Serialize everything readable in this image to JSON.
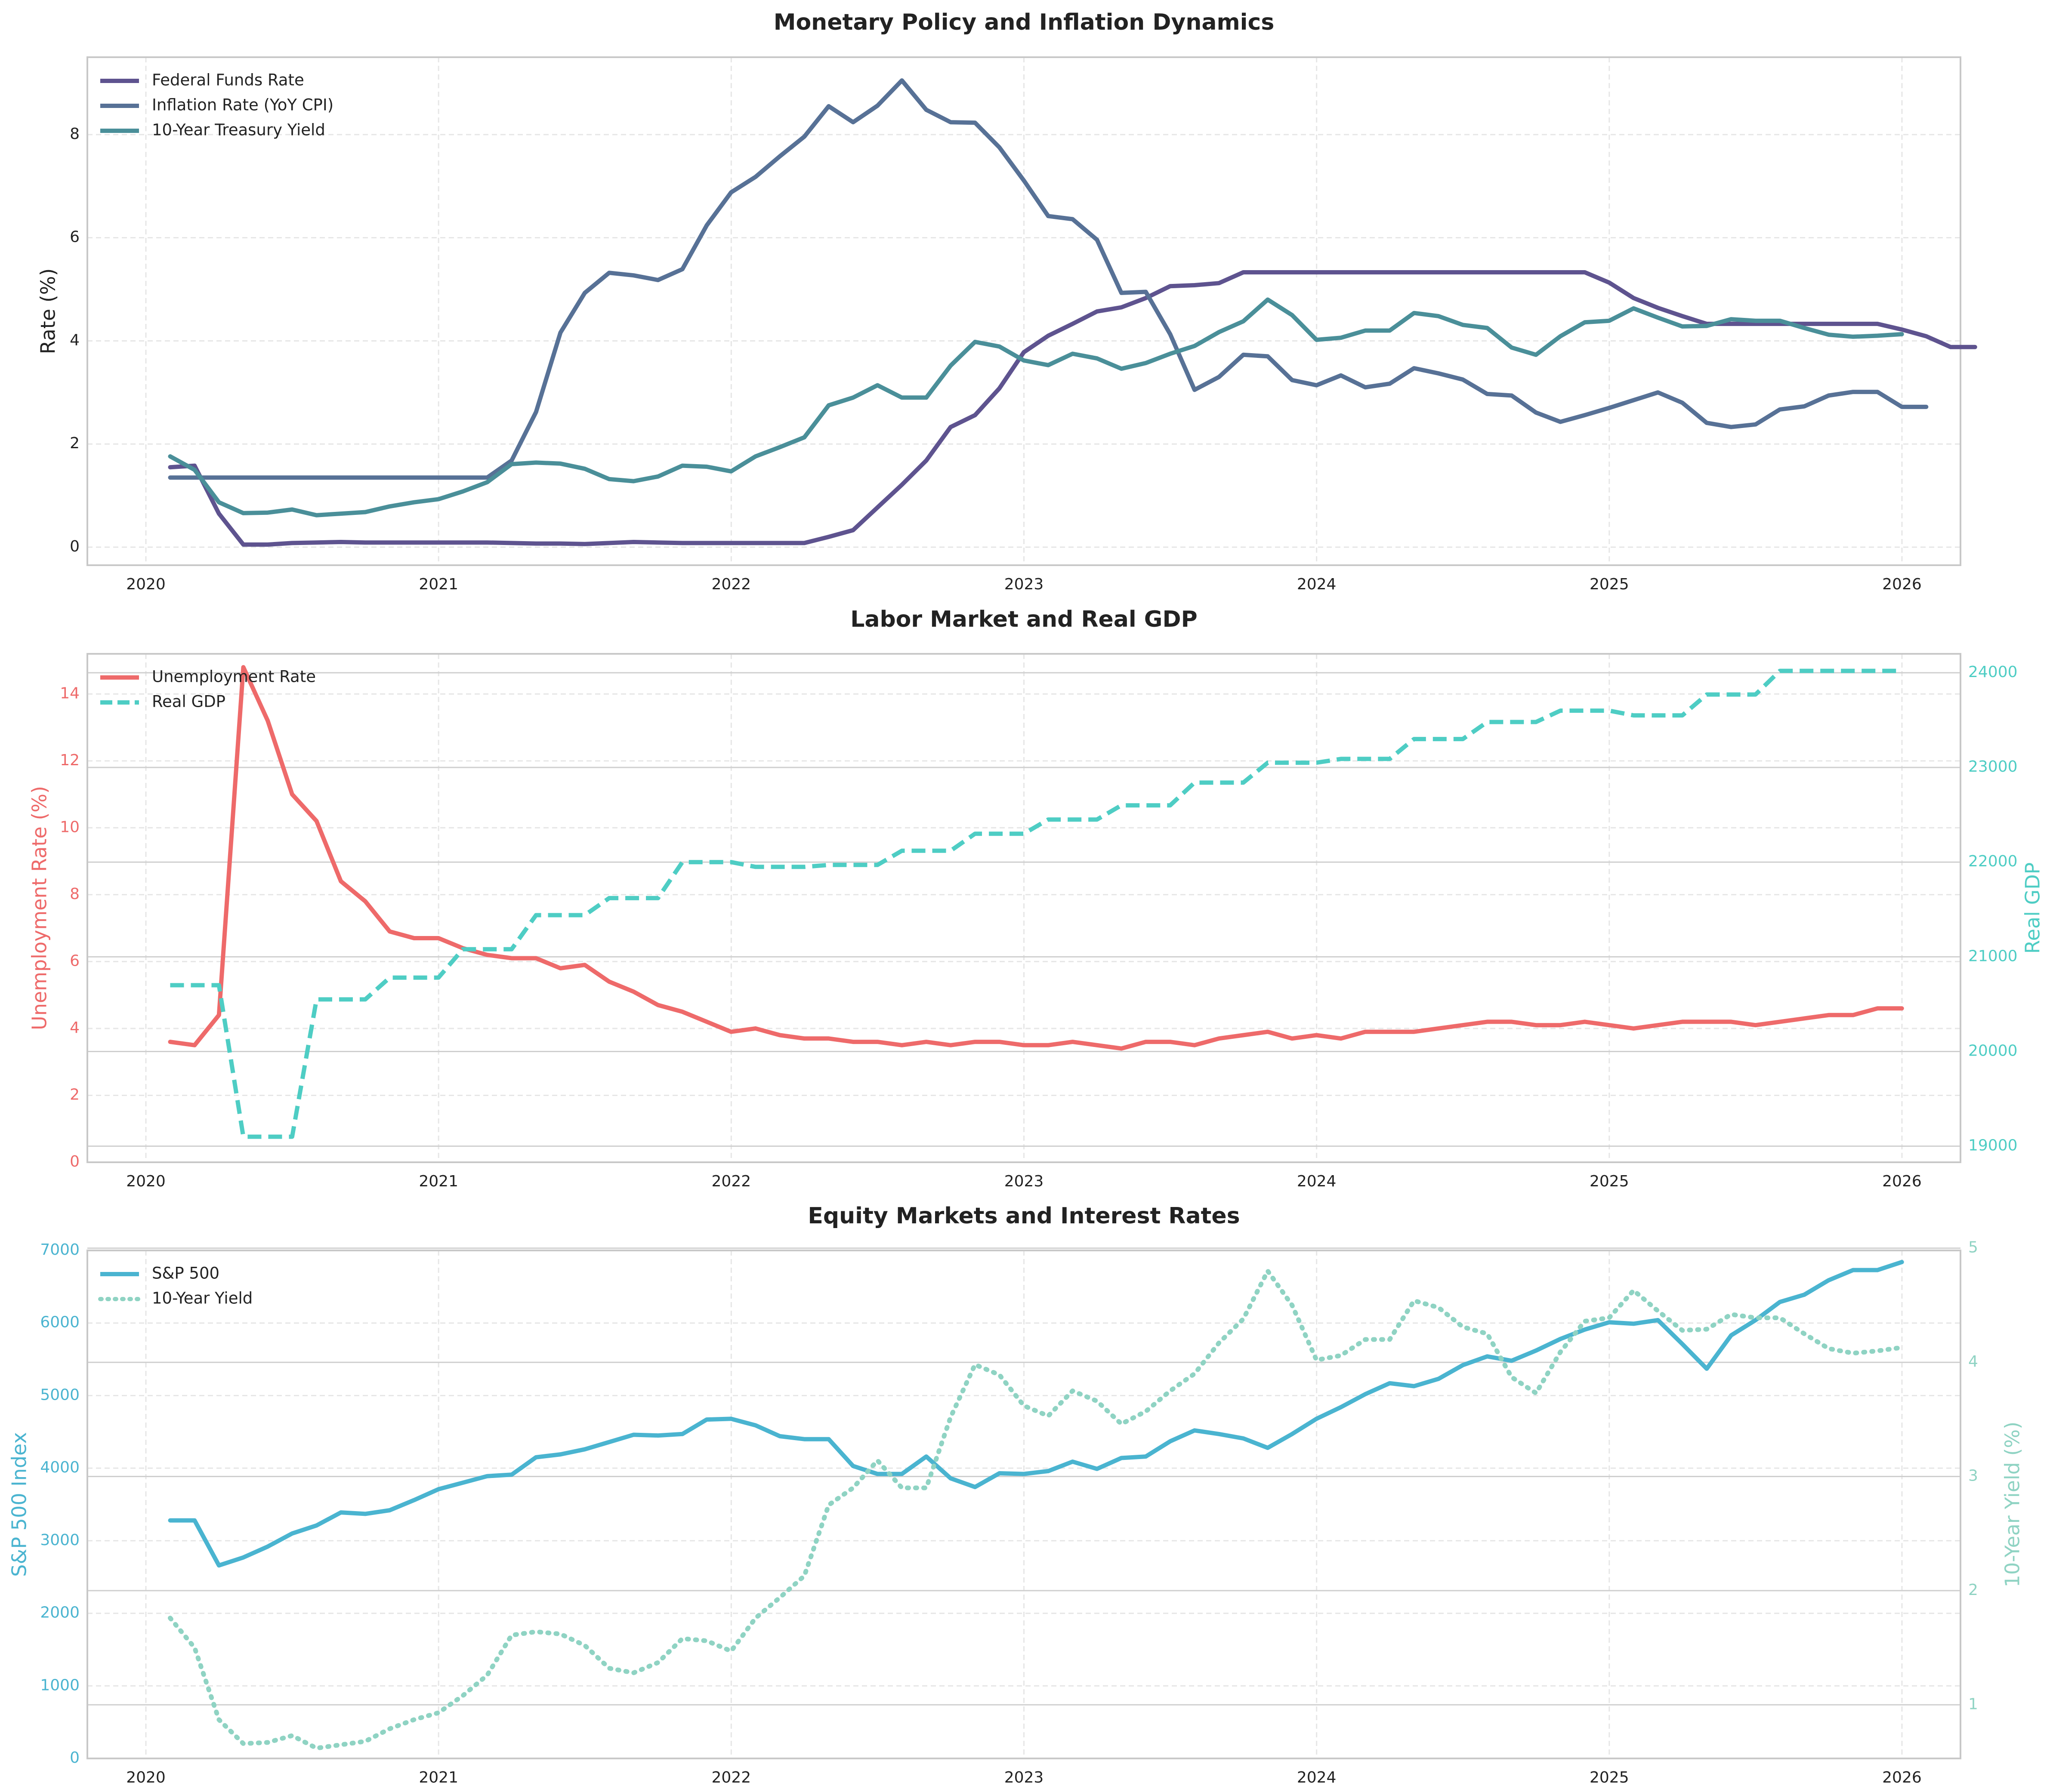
{
  "colors": {
    "fed_funds": "#5e538f",
    "inflation": "#577196",
    "treasury": "#4a8f99",
    "unemployment": "#ee6a6a",
    "gdp": "#4ecdc4",
    "sp500": "#4ab4d0",
    "yield10": "#8fd3c3",
    "grid": "#e6e6e6",
    "axis": "#c8c8c8",
    "text": "#222222"
  },
  "x_ticks": [
    "2020",
    "2021",
    "2022",
    "2023",
    "2024",
    "2025",
    "2026"
  ],
  "chart_data": [
    {
      "type": "line",
      "title": "Monetary Policy and Inflation Dynamics",
      "xlabel": "",
      "ylabel": "Rate (%)",
      "x_range": [
        2019.8,
        2026.2
      ],
      "ylim": [
        -0.35,
        9.5
      ],
      "y_ticks": [
        "0",
        "2",
        "4",
        "6",
        "8"
      ],
      "y_tick_values": [
        0,
        2,
        4,
        6,
        8
      ],
      "grid": true,
      "legend": "top-left",
      "x_start": 2020.083,
      "x_step": 0.0833333,
      "series": [
        {
          "name": "Federal Funds Rate",
          "style": "solid",
          "values": [
            1.55,
            1.58,
            0.65,
            0.05,
            0.05,
            0.08,
            0.09,
            0.1,
            0.09,
            0.09,
            0.09,
            0.09,
            0.09,
            0.09,
            0.08,
            0.07,
            0.07,
            0.06,
            0.08,
            0.1,
            0.09,
            0.08,
            0.08,
            0.08,
            0.08,
            0.08,
            0.08,
            0.2,
            0.33,
            0.77,
            1.21,
            1.68,
            2.33,
            2.56,
            3.08,
            3.78,
            4.1,
            4.33,
            4.57,
            4.65,
            4.83,
            5.06,
            5.08,
            5.12,
            5.33,
            5.33,
            5.33,
            5.33,
            5.33,
            5.33,
            5.33,
            5.33,
            5.33,
            5.33,
            5.33,
            5.33,
            5.33,
            5.33,
            5.33,
            5.13,
            4.83,
            4.64,
            4.48,
            4.33,
            4.33,
            4.33,
            4.33,
            4.33,
            4.33,
            4.33,
            4.33,
            4.22,
            4.09,
            3.88,
            3.88
          ]
        },
        {
          "name": "Inflation Rate (YoY CPI)",
          "style": "solid",
          "values": [
            1.35,
            1.35,
            1.35,
            1.35,
            1.35,
            1.35,
            1.35,
            1.35,
            1.35,
            1.35,
            1.35,
            1.35,
            1.35,
            1.35,
            1.68,
            2.62,
            4.16,
            4.93,
            5.32,
            5.27,
            5.18,
            5.39,
            6.24,
            6.88,
            7.18,
            7.58,
            7.96,
            8.55,
            8.24,
            8.56,
            9.05,
            8.48,
            8.24,
            8.23,
            7.75,
            7.11,
            6.42,
            6.36,
            5.96,
            4.93,
            4.95,
            4.13,
            3.05,
            3.3,
            3.73,
            3.7,
            3.24,
            3.14,
            3.33,
            3.1,
            3.17,
            3.47,
            3.37,
            3.25,
            2.97,
            2.94,
            2.61,
            2.43,
            2.56,
            2.7,
            2.85,
            3.0,
            2.8,
            2.41,
            2.33,
            2.38,
            2.67,
            2.73,
            2.94,
            3.01,
            3.01,
            2.72,
            2.72
          ]
        },
        {
          "name": "10-Year Treasury Yield",
          "style": "solid",
          "values": [
            1.76,
            1.5,
            0.87,
            0.66,
            0.67,
            0.73,
            0.62,
            0.65,
            0.68,
            0.79,
            0.87,
            0.93,
            1.08,
            1.26,
            1.61,
            1.64,
            1.62,
            1.52,
            1.32,
            1.28,
            1.37,
            1.58,
            1.56,
            1.47,
            1.76,
            1.94,
            2.13,
            2.75,
            2.9,
            3.14,
            2.9,
            2.9,
            3.52,
            3.98,
            3.89,
            3.62,
            3.53,
            3.75,
            3.66,
            3.46,
            3.57,
            3.75,
            3.9,
            4.17,
            4.38,
            4.8,
            4.5,
            4.02,
            4.06,
            4.2,
            4.2,
            4.54,
            4.48,
            4.31,
            4.25,
            3.87,
            3.73,
            4.09,
            4.36,
            4.39,
            4.63,
            4.45,
            4.28,
            4.29,
            4.42,
            4.39,
            4.39,
            4.25,
            4.12,
            4.08,
            4.1,
            4.13
          ]
        }
      ]
    },
    {
      "type": "line",
      "title": "Labor Market and Real GDP",
      "xlabel": "",
      "ylabel": "Unemployment Rate (%)",
      "ylabel_right": "Real GDP",
      "x_range": [
        2019.8,
        2026.2
      ],
      "ylim": [
        0,
        15.2
      ],
      "ylim_right": [
        18830,
        24200
      ],
      "y_ticks": [
        "0",
        "2",
        "4",
        "6",
        "8",
        "10",
        "12",
        "14"
      ],
      "y_tick_values": [
        0,
        2,
        4,
        6,
        8,
        10,
        12,
        14
      ],
      "y_ticks_right": [
        "19000",
        "20000",
        "21000",
        "22000",
        "23000",
        "24000"
      ],
      "y_tick_values_right": [
        19000,
        20000,
        21000,
        22000,
        23000,
        24000
      ],
      "grid": true,
      "legend": "top-left",
      "x_start": 2020.083,
      "x_step": 0.0833333,
      "series": [
        {
          "name": "Unemployment Rate",
          "axis": "left",
          "style": "solid",
          "values": [
            3.6,
            3.5,
            4.4,
            14.8,
            13.2,
            11.0,
            10.2,
            8.4,
            7.8,
            6.9,
            6.7,
            6.7,
            6.4,
            6.2,
            6.1,
            6.1,
            5.8,
            5.9,
            5.4,
            5.1,
            4.7,
            4.5,
            4.2,
            3.9,
            4.0,
            3.8,
            3.7,
            3.7,
            3.6,
            3.6,
            3.5,
            3.6,
            3.5,
            3.6,
            3.6,
            3.5,
            3.5,
            3.6,
            3.5,
            3.4,
            3.6,
            3.6,
            3.5,
            3.7,
            3.8,
            3.9,
            3.7,
            3.8,
            3.7,
            3.9,
            3.9,
            3.9,
            4.0,
            4.1,
            4.2,
            4.2,
            4.1,
            4.1,
            4.2,
            4.1,
            4.0,
            4.1,
            4.2,
            4.2,
            4.2,
            4.1,
            4.2,
            4.3,
            4.4,
            4.4,
            4.6,
            4.6
          ]
        },
        {
          "name": "Real GDP",
          "axis": "right",
          "style": "dashed",
          "values": [
            20700,
            20700,
            20700,
            19100,
            19100,
            19100,
            20550,
            20550,
            20550,
            20780,
            20780,
            20780,
            21080,
            21080,
            21080,
            21440,
            21440,
            21440,
            21620,
            21620,
            21620,
            22000,
            22000,
            22000,
            21950,
            21950,
            21950,
            21970,
            21970,
            21970,
            22120,
            22120,
            22120,
            22300,
            22300,
            22300,
            22450,
            22450,
            22450,
            22600,
            22600,
            22600,
            22840,
            22840,
            22840,
            23050,
            23050,
            23050,
            23090,
            23090,
            23090,
            23300,
            23300,
            23300,
            23480,
            23480,
            23480,
            23600,
            23600,
            23600,
            23550,
            23550,
            23550,
            23770,
            23770,
            23770,
            24020,
            24020,
            24020,
            24020,
            24020,
            24020
          ]
        }
      ]
    },
    {
      "type": "line",
      "title": "Equity Markets and Interest Rates",
      "xlabel": "",
      "ylabel": "S&P 500 Index",
      "ylabel_right": "10-Year Yield (%)",
      "x_range": [
        2019.8,
        2026.2
      ],
      "ylim": [
        0,
        7000
      ],
      "ylim_right": [
        0.53,
        4.98
      ],
      "y_ticks": [
        "0",
        "1000",
        "2000",
        "3000",
        "4000",
        "5000",
        "6000",
        "7000"
      ],
      "y_tick_values": [
        0,
        1000,
        2000,
        3000,
        4000,
        5000,
        6000,
        7000
      ],
      "y_ticks_right": [
        "1",
        "2",
        "3",
        "4",
        "5"
      ],
      "y_tick_values_right": [
        1,
        2,
        3,
        4,
        5
      ],
      "grid": true,
      "legend": "top-left",
      "x_start": 2020.083,
      "x_step": 0.0833333,
      "series": [
        {
          "name": "S&P 500",
          "axis": "left",
          "style": "solid",
          "values": [
            3280,
            3280,
            2660,
            2770,
            2920,
            3100,
            3210,
            3390,
            3370,
            3420,
            3560,
            3710,
            3800,
            3890,
            3910,
            4150,
            4190,
            4260,
            4360,
            4460,
            4450,
            4470,
            4670,
            4680,
            4590,
            4440,
            4400,
            4400,
            4030,
            3920,
            3920,
            4160,
            3860,
            3740,
            3930,
            3920,
            3960,
            4090,
            3990,
            4140,
            4160,
            4370,
            4520,
            4470,
            4410,
            4280,
            4470,
            4680,
            4840,
            5020,
            5170,
            5130,
            5230,
            5420,
            5540,
            5480,
            5620,
            5780,
            5910,
            6010,
            5990,
            6040,
            5710,
            5370,
            5830,
            6040,
            6290,
            6390,
            6590,
            6730,
            6730,
            6840
          ]
        },
        {
          "name": "10-Year Yield",
          "axis": "right",
          "style": "dotted",
          "values": [
            1.76,
            1.5,
            0.87,
            0.66,
            0.67,
            0.73,
            0.62,
            0.65,
            0.68,
            0.79,
            0.87,
            0.93,
            1.08,
            1.26,
            1.61,
            1.64,
            1.62,
            1.52,
            1.32,
            1.28,
            1.37,
            1.58,
            1.56,
            1.47,
            1.76,
            1.94,
            2.13,
            2.75,
            2.9,
            3.14,
            2.9,
            2.9,
            3.52,
            3.98,
            3.89,
            3.62,
            3.53,
            3.75,
            3.66,
            3.46,
            3.57,
            3.75,
            3.9,
            4.17,
            4.38,
            4.8,
            4.5,
            4.02,
            4.06,
            4.2,
            4.2,
            4.54,
            4.48,
            4.31,
            4.25,
            3.87,
            3.73,
            4.09,
            4.36,
            4.39,
            4.63,
            4.45,
            4.28,
            4.29,
            4.42,
            4.39,
            4.39,
            4.25,
            4.12,
            4.08,
            4.1,
            4.13
          ]
        }
      ]
    }
  ]
}
